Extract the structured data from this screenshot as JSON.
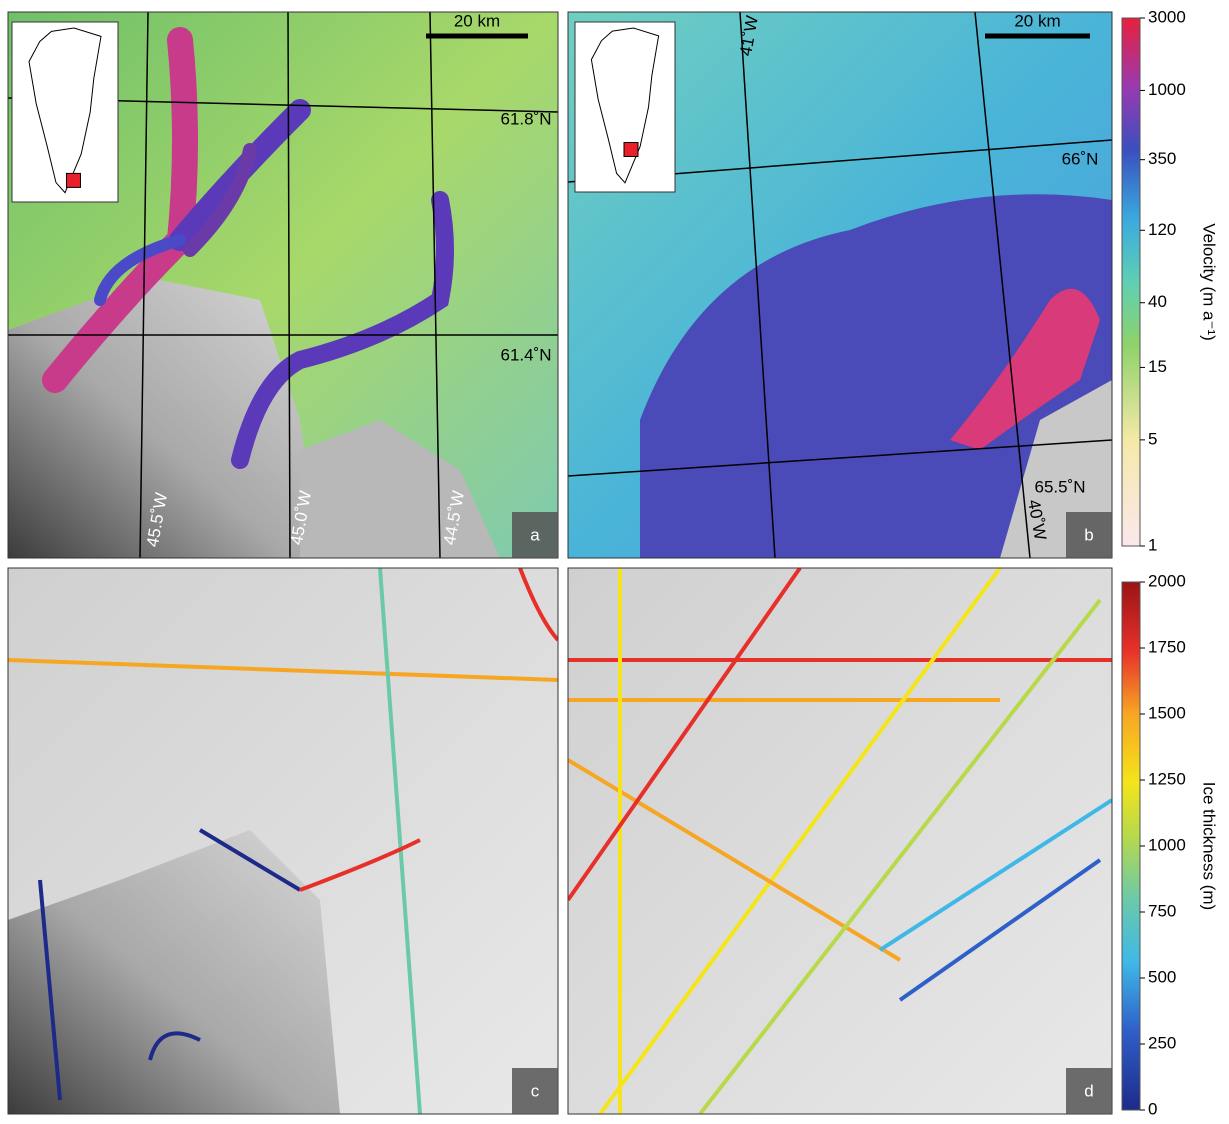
{
  "panels": [
    {
      "label": "a",
      "scale_bar": "20 km",
      "grid_labels": [
        "61.8˚N",
        "61.4˚N",
        "45.5˚W",
        "45.0˚W",
        "44.5˚W"
      ]
    },
    {
      "label": "b",
      "scale_bar": "20 km",
      "grid_labels": [
        "41˚W",
        "66˚N",
        "65.5˚N",
        "40˚W"
      ]
    },
    {
      "label": "c"
    },
    {
      "label": "d"
    }
  ],
  "colorbars": [
    {
      "title": "Velocity (m a⁻¹)",
      "scale": "log",
      "ticks": [
        3000,
        1000,
        350,
        120,
        40,
        15,
        5,
        1
      ]
    },
    {
      "title": "Ice thickness (m)",
      "scale": "linear",
      "ticks": [
        2000,
        1750,
        1500,
        1250,
        1000,
        750,
        500,
        250,
        0
      ]
    }
  ]
}
